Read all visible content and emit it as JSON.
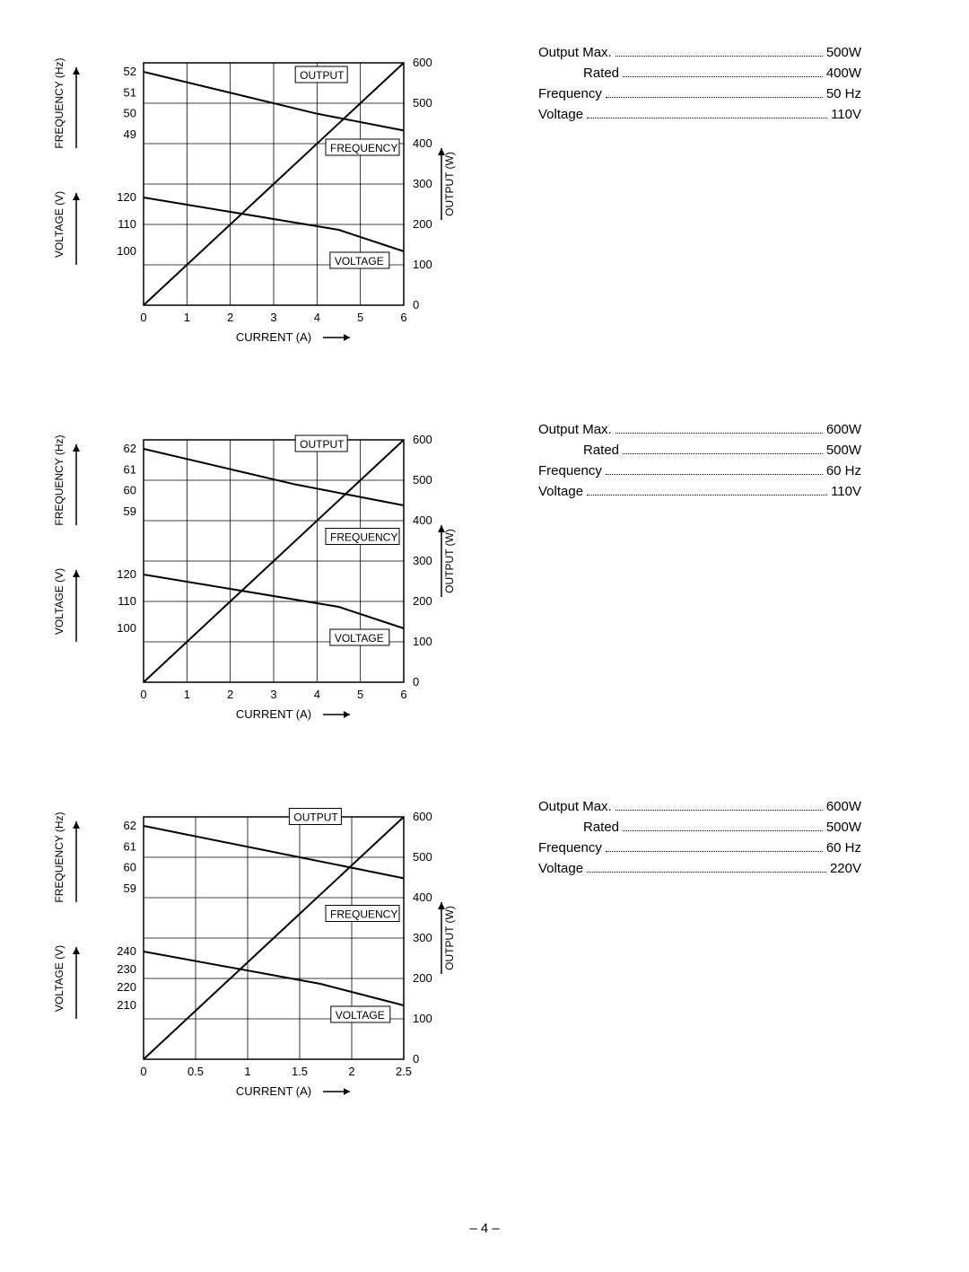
{
  "charts": [
    {
      "xlabel": "CURRENT (A)",
      "xmin": 0,
      "xmax": 6,
      "xticks": [
        0,
        1,
        2,
        3,
        4,
        5,
        6
      ],
      "freq_label": "FREQUENCY (Hz)",
      "freq_ticks": [
        49,
        50,
        51,
        52
      ],
      "freq_min": 49,
      "freq_max": 52,
      "volt_label": "VOLTAGE (V)",
      "volt_ticks": [
        100,
        110,
        120
      ],
      "volt_min": 100,
      "volt_max": 120,
      "out_label": "OUTPUT (W)",
      "out_ticks": [
        0,
        100,
        200,
        300,
        400,
        500,
        600
      ],
      "out_min": 0,
      "out_max": 600,
      "annot_output": "OUTPUT",
      "annot_freq": "FREQUENCY",
      "annot_volt": "VOLTAGE",
      "line_output": [
        [
          0,
          0
        ],
        [
          3,
          300
        ],
        [
          6,
          600
        ]
      ],
      "line_freq": [
        [
          0,
          52
        ],
        [
          4,
          50
        ],
        [
          6,
          49.2
        ]
      ],
      "line_volt": [
        [
          0,
          120
        ],
        [
          4.5,
          108
        ],
        [
          6,
          100
        ]
      ],
      "annot_output_pos": [
        3.5,
        560
      ],
      "annot_freq_pos": [
        4.2,
        380
      ],
      "annot_volt_pos": [
        4.3,
        100
      ],
      "grid_color": "#000000",
      "line_color": "#000000",
      "line_width": 1.5
    },
    {
      "xlabel": "CURRENT (A)",
      "xmin": 0,
      "xmax": 6,
      "xticks": [
        0,
        1,
        2,
        3,
        4,
        5,
        6
      ],
      "freq_label": "FREQUENCY (Hz)",
      "freq_ticks": [
        59,
        60,
        61,
        62
      ],
      "freq_min": 59,
      "freq_max": 62,
      "volt_label": "VOLTAGE (V)",
      "volt_ticks": [
        100,
        110,
        120
      ],
      "volt_min": 100,
      "volt_max": 120,
      "out_label": "OUTPUT (W)",
      "out_ticks": [
        0,
        100,
        200,
        300,
        400,
        500,
        600
      ],
      "out_min": 0,
      "out_max": 600,
      "annot_output": "OUTPUT",
      "annot_freq": "FREQUENCY",
      "annot_volt": "VOLTAGE",
      "line_output": [
        [
          0,
          0
        ],
        [
          3,
          300
        ],
        [
          6,
          600
        ]
      ],
      "line_freq": [
        [
          0,
          62
        ],
        [
          3.5,
          60.3
        ],
        [
          6,
          59.3
        ]
      ],
      "line_volt": [
        [
          0,
          120
        ],
        [
          4.5,
          108
        ],
        [
          6,
          100
        ]
      ],
      "annot_output_pos": [
        3.5,
        580
      ],
      "annot_freq_pos": [
        4.2,
        350
      ],
      "annot_volt_pos": [
        4.3,
        100
      ],
      "grid_color": "#000000",
      "line_color": "#000000",
      "line_width": 1.5
    },
    {
      "xlabel": "CURRENT (A)",
      "xmin": 0,
      "xmax": 2.5,
      "xticks": [
        0,
        0.5,
        1,
        1.5,
        2,
        2.5
      ],
      "freq_label": "FREQUENCY (Hz)",
      "freq_ticks": [
        59,
        60,
        61,
        62
      ],
      "freq_min": 59,
      "freq_max": 62,
      "volt_label": "VOLTAGE (V)",
      "volt_ticks": [
        210,
        220,
        230,
        240
      ],
      "volt_min": 210,
      "volt_max": 240,
      "out_label": "OUTPUT (W)",
      "out_ticks": [
        0,
        100,
        200,
        300,
        400,
        500,
        600
      ],
      "out_min": 0,
      "out_max": 600,
      "annot_output": "OUTPUT",
      "annot_freq": "FREQUENCY",
      "annot_volt": "VOLTAGE",
      "line_output": [
        [
          0,
          0
        ],
        [
          1.25,
          300
        ],
        [
          2.5,
          600
        ]
      ],
      "line_freq": [
        [
          0,
          62
        ],
        [
          1.5,
          60.5
        ],
        [
          2.5,
          59.5
        ]
      ],
      "line_volt": [
        [
          0,
          240
        ],
        [
          1.7,
          222
        ],
        [
          2.5,
          210
        ]
      ],
      "annot_output_pos": [
        1.4,
        590
      ],
      "annot_freq_pos": [
        1.75,
        350
      ],
      "annot_volt_pos": [
        1.8,
        100
      ],
      "grid_color": "#000000",
      "line_color": "#000000",
      "line_width": 1.5
    }
  ],
  "specs": [
    [
      {
        "label": "Output Max.",
        "value": "500W"
      },
      {
        "label": "Rated",
        "value": "400W",
        "indent": true
      },
      {
        "label": "Frequency",
        "value": "50 Hz"
      },
      {
        "label": "Voltage",
        "value": "110V"
      }
    ],
    [
      {
        "label": "Output Max.",
        "value": "600W"
      },
      {
        "label": "Rated",
        "value": "500W",
        "indent": true
      },
      {
        "label": "Frequency",
        "value": "60 Hz"
      },
      {
        "label": "Voltage",
        "value": "110V"
      }
    ],
    [
      {
        "label": "Output Max.",
        "value": "600W"
      },
      {
        "label": "Rated",
        "value": "500W",
        "indent": true
      },
      {
        "label": "Frequency",
        "value": "60 Hz"
      },
      {
        "label": "Voltage",
        "value": "220V"
      }
    ]
  ],
  "footer": "– 4 –"
}
